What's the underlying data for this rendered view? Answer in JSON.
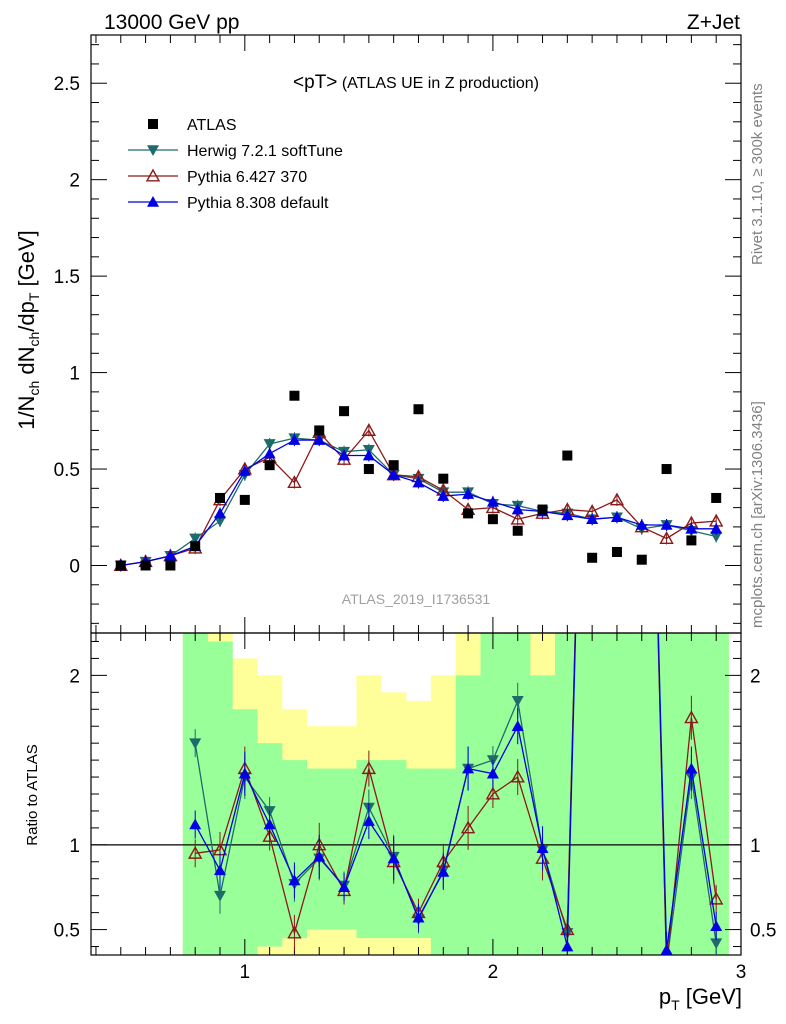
{
  "header": {
    "left": "13000 GeV pp",
    "right": "Z+Jet"
  },
  "side_labels": {
    "rivet": "Rivet 3.1.10, ≥ 300k events",
    "mcplots": "mcplots.cern.ch [arXiv:1306.3436]"
  },
  "chart_data": {
    "type": "scatter",
    "title_main": "<pT>",
    "title_sub": " (ATLAS UE in Z production)",
    "analysis_id": "ATLAS_2019_I1736531",
    "ylabel_top": "1/N_ch dN_ch/dp_T [GeV]",
    "ylabel_ratio": "Ratio to ATLAS",
    "xlabel": "p_T [GeV]",
    "x_ticks_labeled": [
      "1",
      "2",
      "3"
    ],
    "top_ylim": [
      -0.35,
      2.75
    ],
    "top_yticks": [
      "0",
      "0.5",
      "1",
      "1.5",
      "2",
      "2.5"
    ],
    "ratio_ylim": [
      0.35,
      2.25
    ],
    "ratio_yticks": [
      "0.5",
      "1",
      "2"
    ],
    "xlim": [
      0.38,
      3.0
    ],
    "x": [
      0.5,
      0.6,
      0.7,
      0.8,
      0.9,
      1.0,
      1.1,
      1.2,
      1.3,
      1.4,
      1.5,
      1.6,
      1.7,
      1.8,
      1.9,
      2.0,
      2.1,
      2.2,
      2.3,
      2.4,
      2.5,
      2.6,
      2.7,
      2.8,
      2.9
    ],
    "series": [
      {
        "name": "ATLAS",
        "color": "#000000",
        "marker": "square",
        "values": [
          0.0,
          0.0,
          0.0,
          0.1,
          0.35,
          0.34,
          0.52,
          0.88,
          0.7,
          0.8,
          0.5,
          0.52,
          0.81,
          0.45,
          0.27,
          0.24,
          0.18,
          0.29,
          0.57,
          0.04,
          0.07,
          0.03,
          0.5,
          0.13,
          0.35
        ]
      },
      {
        "name": "Herwig 7.2.1 softTune",
        "color": "#1f6b6b",
        "marker": "triangle-down",
        "values": [
          0.0,
          0.02,
          0.05,
          0.14,
          0.23,
          0.47,
          0.63,
          0.66,
          0.65,
          0.59,
          0.6,
          0.47,
          0.45,
          0.38,
          0.38,
          0.32,
          0.31,
          0.28,
          0.27,
          0.24,
          0.25,
          0.19,
          0.21,
          0.18,
          0.15
        ]
      },
      {
        "name": "Pythia 6.427 370",
        "color": "#8b1a1a",
        "marker": "triangle-up-open",
        "values": [
          0.0,
          0.02,
          0.05,
          0.09,
          0.34,
          0.5,
          0.56,
          0.43,
          0.69,
          0.55,
          0.7,
          0.47,
          0.46,
          0.39,
          0.29,
          0.3,
          0.24,
          0.27,
          0.29,
          0.28,
          0.34,
          0.2,
          0.14,
          0.22,
          0.23
        ]
      },
      {
        "name": "Pythia 8.308 default",
        "color": "#0000e6",
        "marker": "triangle-up",
        "values": [
          0.0,
          0.02,
          0.05,
          0.1,
          0.27,
          0.49,
          0.58,
          0.65,
          0.65,
          0.57,
          0.57,
          0.47,
          0.43,
          0.36,
          0.37,
          0.33,
          0.29,
          0.28,
          0.26,
          0.24,
          0.25,
          0.21,
          0.21,
          0.19,
          0.19
        ]
      }
    ],
    "ratios": [
      {
        "name": "Herwig 7.2.1 softTune",
        "values": [
          null,
          null,
          null,
          1.6,
          0.7,
          1.4,
          1.2,
          0.77,
          0.92,
          0.76,
          1.22,
          0.93,
          0.56,
          0.85,
          1.45,
          1.5,
          1.85,
          0.97,
          0.48,
          6.0,
          6.0,
          6.0,
          0.3,
          1.4,
          0.42
        ]
      },
      {
        "name": "Pythia 6.427 370",
        "values": [
          null,
          null,
          null,
          0.95,
          0.97,
          1.45,
          1.05,
          0.48,
          1.0,
          0.73,
          1.45,
          0.9,
          0.6,
          0.9,
          1.1,
          1.3,
          1.4,
          0.92,
          0.5,
          6.0,
          6.0,
          6.0,
          0.28,
          1.75,
          0.68
        ]
      },
      {
        "name": "Pythia 8.308 default",
        "values": [
          null,
          null,
          null,
          1.12,
          0.85,
          1.42,
          1.12,
          0.79,
          0.93,
          0.75,
          1.14,
          0.92,
          0.57,
          0.84,
          1.45,
          1.42,
          1.7,
          0.98,
          0.4,
          6.0,
          6.0,
          6.0,
          0.38,
          1.45,
          0.52
        ]
      }
    ],
    "ratio_bands": {
      "edges": [
        0.75,
        0.85,
        0.95,
        1.05,
        1.15,
        1.25,
        1.35,
        1.45,
        1.55,
        1.65,
        1.75,
        1.85,
        1.95,
        2.05,
        2.15,
        2.25,
        2.35,
        2.45,
        2.55,
        2.65,
        2.75,
        2.85,
        2.95
      ],
      "green_hi": [
        3.0,
        2.2,
        1.8,
        1.6,
        1.5,
        1.45,
        1.45,
        1.5,
        1.5,
        1.45,
        1.45,
        2.0,
        2.3,
        2.3,
        2.0,
        2.5,
        3.0,
        3.0,
        3.0,
        3.0,
        3.0,
        3.0
      ],
      "green_lo": [
        0.3,
        0.3,
        0.3,
        0.4,
        0.45,
        0.5,
        0.5,
        0.45,
        0.45,
        0.45,
        0.3,
        0.3,
        0.3,
        0.3,
        0.3,
        0.3,
        0.3,
        0.3,
        0.3,
        0.3,
        0.3,
        0.3
      ],
      "yellow_hi": [
        3.0,
        3.0,
        2.1,
        2.0,
        1.8,
        1.7,
        1.7,
        2.0,
        1.9,
        1.85,
        2.0,
        2.3,
        3.0,
        3.0,
        2.8,
        3.0,
        3.0,
        3.0,
        3.0,
        3.0,
        3.0,
        3.0
      ],
      "yellow_lo": [
        0.3,
        0.3,
        0.3,
        0.3,
        0.3,
        0.3,
        0.3,
        0.3,
        0.3,
        0.3,
        0.3,
        0.3,
        0.3,
        0.3,
        0.3,
        0.3,
        0.3,
        0.3,
        0.3,
        0.3,
        0.3,
        0.3
      ]
    },
    "grid": false,
    "legend_position": "top-left"
  }
}
